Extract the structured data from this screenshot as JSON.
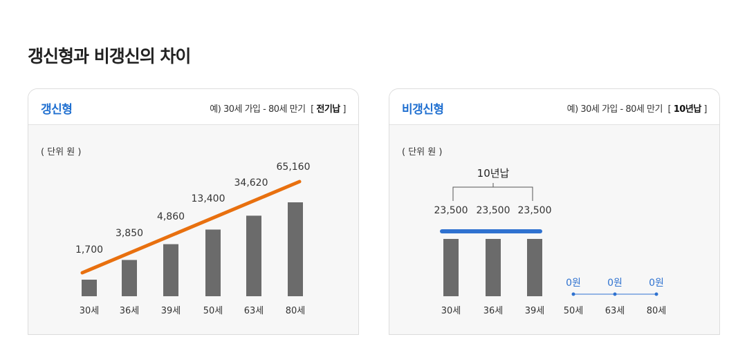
{
  "page": {
    "title": "갱신형과 비갱신의 차이"
  },
  "cards": [
    {
      "title": "갱신형",
      "desc": "예) 30세 가입  -  80세 만기",
      "pay_type": "전기납",
      "unit": "( 단위 원 )"
    },
    {
      "title": "비갱신형",
      "desc": "예) 30세 가입  -  80세 만기",
      "pay_type": "10년납",
      "unit": "( 단위 원 )"
    }
  ],
  "chart_data": [
    {
      "type": "bar",
      "title": "갱신형",
      "categories": [
        "30세",
        "36세",
        "39세",
        "50세",
        "63세",
        "80세"
      ],
      "values": [
        1700,
        3850,
        4860,
        13400,
        34620,
        65160
      ],
      "value_labels": [
        "1,700",
        "3,850",
        "4,860",
        "13,400",
        "34,620",
        "65,160"
      ],
      "trend_line": true,
      "colors": {
        "bar": "#6b6b6b",
        "trend": "#e8700f",
        "label": "#333333"
      }
    },
    {
      "type": "bar",
      "title": "비갱신형",
      "categories": [
        "30세",
        "36세",
        "39세",
        "50세",
        "63세",
        "80세"
      ],
      "values": [
        23500,
        23500,
        23500,
        0,
        0,
        0
      ],
      "value_labels": [
        "23,500",
        "23,500",
        "23,500",
        "0원",
        "0원",
        "0원"
      ],
      "bracket_label": "10년납",
      "colors": {
        "bar": "#6b6b6b",
        "line": "#2f72d0",
        "zero": "#2f72d0",
        "label": "#333333"
      }
    }
  ]
}
